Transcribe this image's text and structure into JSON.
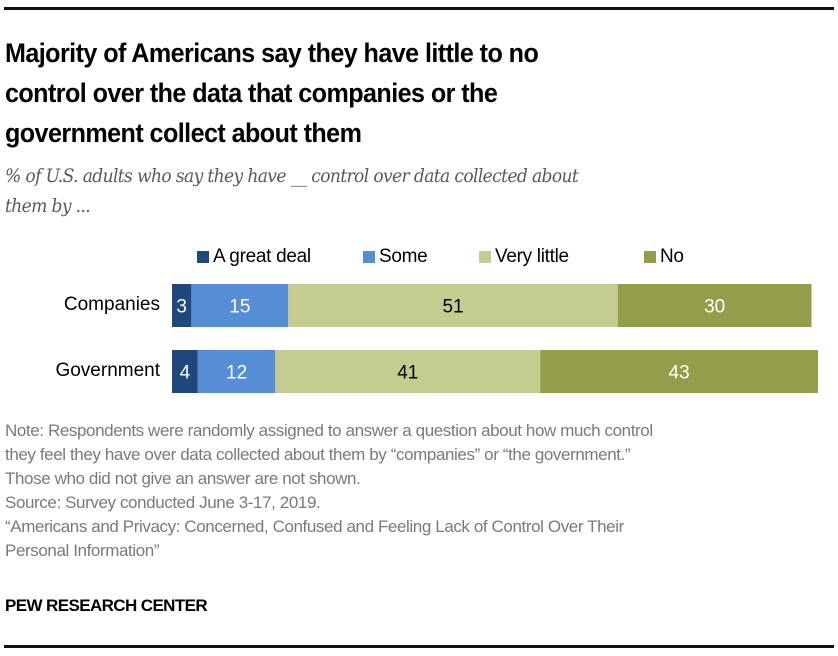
{
  "header": {
    "title_lines": [
      "Majority of Americans say they have little to no",
      "control over the data that companies or the",
      "government collect about them"
    ],
    "subtitle_lines": [
      "% of U.S. adults who say they have __ control over data collected about",
      "them by ..."
    ]
  },
  "chart_data": {
    "type": "bar",
    "orientation": "horizontal",
    "stacked": true,
    "title": "Majority of Americans say they have little to no control over the data that companies or the government collect about them",
    "subtitle": "% of U.S. adults who say they have __ control over data collected about them by ...",
    "categories": [
      "Companies",
      "Government"
    ],
    "series": [
      {
        "name": "A great deal",
        "color": "#1f497d",
        "label_color": "#ffffff",
        "values": [
          3,
          4
        ]
      },
      {
        "name": "Some",
        "color": "#558ed5",
        "label_color": "#ffffff",
        "values": [
          15,
          12
        ]
      },
      {
        "name": "Very little",
        "color": "#c4cc8f",
        "label_color": "#000000",
        "values": [
          51,
          41
        ]
      },
      {
        "name": "No",
        "color": "#959d4a",
        "label_color": "#ffffff",
        "values": [
          30,
          43
        ]
      }
    ],
    "xlim": [
      0,
      100
    ],
    "xlabel": "",
    "ylabel": "",
    "grid": false,
    "legend_position": "top"
  },
  "footer": {
    "notes": [
      "Note: Respondents were randomly assigned to answer a question about how much control",
      "they feel they have over data collected about them by “companies” or “the government.”",
      "Those who did not give an answer are not shown.",
      "Source: Survey conducted June 3-17, 2019.",
      "“Americans and Privacy: Concerned, Confused and Feeling Lack of Control Over Their",
      "Personal Information”"
    ],
    "brand": "PEW RESEARCH CENTER"
  }
}
